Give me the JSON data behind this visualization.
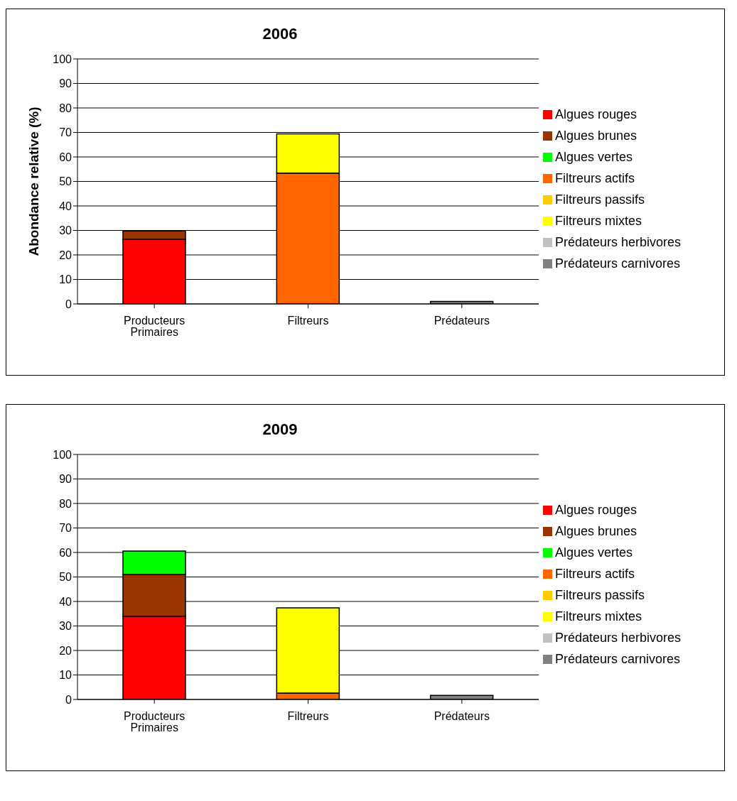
{
  "chart_data": [
    {
      "type": "bar",
      "title": "2006",
      "ylabel": "Abondance relative (%)",
      "stacked": true,
      "categories": [
        "Producteurs Primaires",
        "Filtreurs",
        "Prédateurs"
      ],
      "ylim": [
        0,
        100
      ],
      "yticks": [
        0,
        10,
        20,
        30,
        40,
        50,
        60,
        70,
        80,
        90,
        100
      ],
      "grid": "y",
      "legend": "right",
      "series": [
        {
          "name": "Algues rouges",
          "color": "#ff0000",
          "values": [
            26.4,
            null,
            null
          ]
        },
        {
          "name": "Algues brunes",
          "color": "#993300",
          "values": [
            3.4,
            null,
            null
          ]
        },
        {
          "name": "Algues vertes",
          "color": "#00ff00",
          "values": [
            null,
            null,
            null
          ]
        },
        {
          "name": "Filtreurs actifs",
          "color": "#ff6600",
          "values": [
            null,
            53.4,
            null
          ]
        },
        {
          "name": "Filtreurs passifs",
          "color": "#ffcc00",
          "values": [
            null,
            null,
            null
          ]
        },
        {
          "name": "Filtreurs mixtes",
          "color": "#ffff00",
          "values": [
            null,
            16,
            null
          ]
        },
        {
          "name": "Prédateurs herbivores",
          "color": "#c0c0c0",
          "values": [
            null,
            null,
            null
          ]
        },
        {
          "name": "Prédateurs carnivores",
          "color": "#808080",
          "values": [
            null,
            null,
            1
          ]
        }
      ]
    },
    {
      "type": "bar",
      "title": "2009",
      "stacked": true,
      "categories": [
        "Producteurs Primaires",
        "Filtreurs",
        "Prédateurs"
      ],
      "ylim": [
        0,
        100
      ],
      "yticks": [
        0,
        10,
        20,
        30,
        40,
        50,
        60,
        70,
        80,
        90,
        100
      ],
      "grid": "y",
      "legend": "right",
      "series": [
        {
          "name": "Algues rouges",
          "color": "#ff0000",
          "values": [
            34,
            null,
            null
          ]
        },
        {
          "name": "Algues brunes",
          "color": "#993300",
          "values": [
            17,
            null,
            null
          ]
        },
        {
          "name": "Algues vertes",
          "color": "#00ff00",
          "values": [
            9.6,
            null,
            null
          ]
        },
        {
          "name": "Filtreurs actifs",
          "color": "#ff6600",
          "values": [
            null,
            2.6,
            null
          ]
        },
        {
          "name": "Filtreurs passifs",
          "color": "#ffcc00",
          "values": [
            null,
            null,
            null
          ]
        },
        {
          "name": "Filtreurs mixtes",
          "color": "#ffff00",
          "values": [
            null,
            34.8,
            null
          ]
        },
        {
          "name": "Prédateurs herbivores",
          "color": "#c0c0c0",
          "values": [
            null,
            null,
            null
          ]
        },
        {
          "name": "Prédateurs carnivores",
          "color": "#808080",
          "values": [
            null,
            null,
            1.7
          ]
        }
      ]
    }
  ]
}
